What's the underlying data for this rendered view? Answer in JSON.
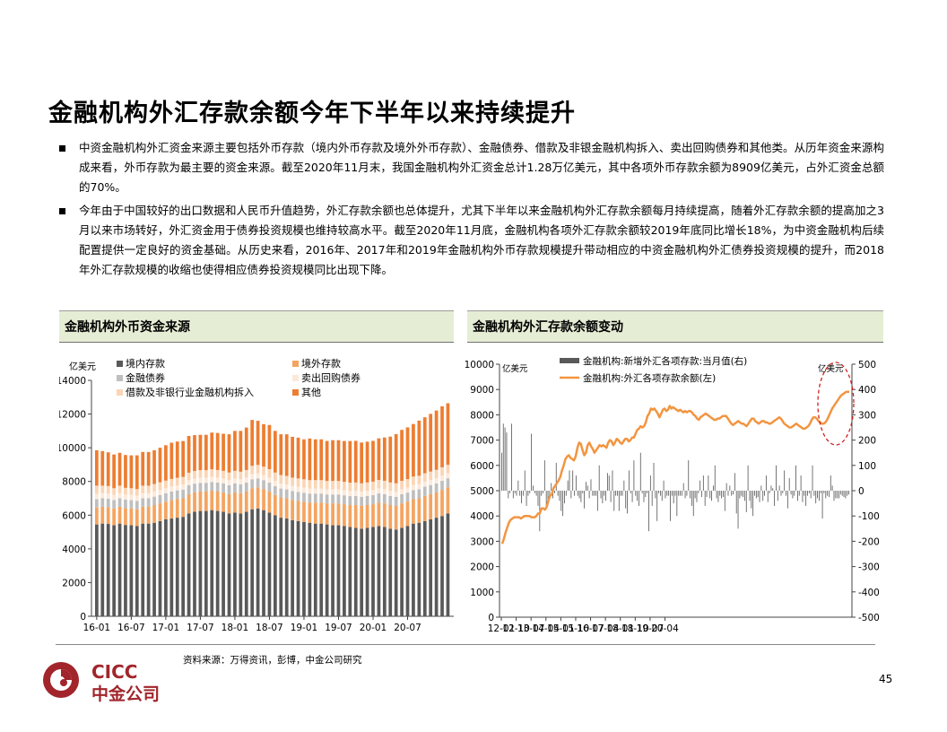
{
  "page": {
    "title": "金融机构外汇存款余额今年下半年以来持续提升",
    "bullets": [
      "中资金融机构外汇资金来源主要包括外币存款（境内外币存款及境外外币存款）、金融债券、借款及非银金融机构拆入、卖出回购债券和其他类。从历年资金来源构成来看，外币存款为最主要的资金来源。截至2020年11月末，我国金融机构外汇资金总计1.28万亿美元，其中各项外币存款余额为8909亿美元，占外汇资金总额的70%。",
      "今年由于中国较好的出口数据和人民币升值趋势，外汇存款余额也总体提升，尤其下半年以来金融机构外汇存款余额每月持续提高，随着外汇存款余额的提高加之3月以来市场转好，外汇资金用于债券投资规模也维持较高水平。截至2020年11月底，金融机构各项外汇存款余额较2019年底同比增长18%，为中资金融机构后续配置提供一定良好的资金基础。从历史来看，2016年、2017年和2019年金融机构外币存款规模提升带动相应的中资金融机构外汇债券投资规模的提升，而2018年外汇存款规模的收缩也使得相应债券投资规模同比出现下降。"
    ],
    "left_panel_title": "金融机构外币资金来源",
    "right_panel_title": "金融机构外汇存款余额变动",
    "source": "资料来源：万得资讯，彭博，中金公司研究",
    "page_number": "45",
    "logo": {
      "en": "CICC",
      "cn": "中金公司"
    },
    "colors": {
      "panel_bg": "#e6edd5",
      "logo_red": "#a1252b",
      "line_orange": "#f29540"
    }
  },
  "chart_data": [
    {
      "type": "bar",
      "stacked": true,
      "title": "金融机构外币资金来源",
      "ylabel": "亿美元",
      "ylim": [
        0,
        14000
      ],
      "yticks": [
        0,
        2000,
        4000,
        6000,
        8000,
        10000,
        12000,
        14000
      ],
      "xtick_labels": [
        "16-01",
        "16-07",
        "17-01",
        "17-07",
        "18-01",
        "18-07",
        "19-01",
        "19-07",
        "20-01",
        "20-07"
      ],
      "grid": false,
      "legend_position": "top",
      "series": [
        {
          "name": "境内存款",
          "color": "#595959",
          "values": [
            5450,
            5500,
            5480,
            5400,
            5500,
            5420,
            5400,
            5350,
            5500,
            5500,
            5550,
            5650,
            5750,
            5800,
            5850,
            5900,
            6100,
            6200,
            6250,
            6250,
            6300,
            6250,
            6200,
            6100,
            6150,
            6100,
            6200,
            6350,
            6400,
            6300,
            6150,
            6000,
            5850,
            5800,
            5700,
            5650,
            5600,
            5550,
            5500,
            5500,
            5450,
            5400,
            5400,
            5350,
            5300,
            5250,
            5200,
            5250,
            5300,
            5350,
            5300,
            5200,
            5150,
            5250,
            5350,
            5500,
            5550,
            5650,
            5750,
            5850,
            5950,
            6100
          ]
        },
        {
          "name": "境外存款",
          "color": "#f4a460",
          "values": [
            1000,
            1000,
            1000,
            1000,
            1000,
            1000,
            1000,
            1000,
            1000,
            1000,
            1050,
            1050,
            1050,
            1100,
            1100,
            1100,
            1150,
            1150,
            1150,
            1150,
            1150,
            1150,
            1150,
            1150,
            1200,
            1200,
            1200,
            1250,
            1250,
            1250,
            1250,
            1200,
            1200,
            1200,
            1200,
            1200,
            1200,
            1200,
            1250,
            1250,
            1250,
            1300,
            1300,
            1300,
            1300,
            1350,
            1350,
            1350,
            1350,
            1400,
            1400,
            1400,
            1400,
            1450,
            1450,
            1450,
            1450,
            1500,
            1500,
            1500,
            1550,
            1550
          ]
        },
        {
          "name": "金融债券",
          "color": "#bfbfbf",
          "values": [
            500,
            500,
            500,
            500,
            500,
            500,
            500,
            500,
            500,
            500,
            500,
            500,
            500,
            500,
            520,
            520,
            520,
            520,
            520,
            520,
            520,
            530,
            530,
            530,
            530,
            530,
            530,
            530,
            530,
            530,
            530,
            530,
            530,
            530,
            530,
            530,
            530,
            530,
            530,
            530,
            530,
            530,
            530,
            530,
            530,
            540,
            540,
            540,
            540,
            540,
            540,
            540,
            540,
            540,
            540,
            540,
            540,
            540,
            540,
            540,
            540,
            540
          ]
        },
        {
          "name": "卖出回购债券",
          "color": "#fde9d9",
          "values": [
            300,
            300,
            300,
            300,
            300,
            300,
            300,
            300,
            300,
            300,
            300,
            300,
            300,
            300,
            300,
            300,
            300,
            300,
            300,
            300,
            300,
            300,
            300,
            300,
            300,
            300,
            300,
            300,
            300,
            300,
            300,
            300,
            300,
            300,
            300,
            300,
            300,
            300,
            300,
            300,
            300,
            300,
            300,
            300,
            300,
            300,
            300,
            300,
            300,
            300,
            300,
            300,
            300,
            300,
            300,
            300,
            300,
            300,
            300,
            300,
            300,
            300
          ]
        },
        {
          "name": "借款及非银行业金融机构拆入",
          "color": "#fbd5b5",
          "values": [
            500,
            450,
            450,
            400,
            450,
            400,
            400,
            400,
            450,
            450,
            450,
            450,
            450,
            450,
            450,
            450,
            450,
            450,
            450,
            450,
            450,
            450,
            450,
            450,
            450,
            450,
            450,
            500,
            500,
            500,
            500,
            500,
            500,
            500,
            500,
            500,
            500,
            500,
            500,
            500,
            500,
            500,
            500,
            500,
            500,
            500,
            500,
            500,
            500,
            500,
            500,
            500,
            500,
            500,
            500,
            500,
            500,
            500,
            500,
            500,
            500,
            500
          ]
        },
        {
          "name": "其他",
          "color": "#ed7d31",
          "values": [
            2100,
            2050,
            2000,
            2000,
            1950,
            1950,
            1950,
            2000,
            2000,
            2000,
            2000,
            2050,
            2100,
            2150,
            2150,
            2130,
            2180,
            2130,
            2100,
            2100,
            2180,
            2200,
            2200,
            2270,
            2370,
            2420,
            2520,
            2720,
            2620,
            2520,
            2620,
            2470,
            2420,
            2470,
            2420,
            2420,
            2370,
            2470,
            2420,
            2420,
            2370,
            2420,
            2420,
            2420,
            2470,
            2470,
            2420,
            2420,
            2420,
            2470,
            2570,
            2720,
            2920,
            3020,
            3070,
            3120,
            3270,
            3320,
            3420,
            3520,
            3620,
            3650
          ]
        }
      ]
    },
    {
      "type": "bar+line",
      "title": "金融机构外汇存款余额变动",
      "ylabel_left": "亿美元",
      "ylabel_right": "亿美元",
      "ylim_left": [
        0,
        10000
      ],
      "ylim_right": [
        -500,
        500
      ],
      "yticks_left": [
        0,
        1000,
        2000,
        3000,
        4000,
        5000,
        6000,
        7000,
        8000,
        9000,
        10000
      ],
      "yticks_right": [
        -500,
        -400,
        -300,
        -200,
        -100,
        0,
        100,
        200,
        300,
        400,
        500
      ],
      "xtick_labels": [
        "12-01",
        "12-10",
        "13-07",
        "14-04",
        "15-01",
        "15-10",
        "16-07",
        "17-04",
        "18-01",
        "18-10",
        "19-07",
        "20-04"
      ],
      "legend_position": "top",
      "annotation": "亿美元",
      "series": [
        {
          "name": "金融机构:新增外汇各项存款:当月值(右)",
          "type": "bar",
          "axis": "right",
          "color": "#595959",
          "values": [
            150,
            265,
            250,
            230,
            -30,
            -10,
            265,
            -30,
            -10,
            -20,
            40,
            -20,
            -50,
            -20,
            80,
            -60,
            -20,
            -10,
            225,
            20,
            -10,
            -20,
            -60,
            -160,
            -20,
            -10,
            120,
            -60,
            -60,
            -20,
            30,
            -30,
            -10,
            110,
            -20,
            -40,
            -80,
            -100,
            -50,
            -20,
            40,
            80,
            -30,
            80,
            -20,
            60,
            -20,
            -30,
            -45,
            -10,
            -70,
            35,
            20,
            -30,
            45,
            -20,
            -20,
            -20,
            -80,
            100,
            -30,
            -50,
            -20,
            -40,
            70,
            60,
            -45,
            80,
            -80,
            -20,
            -20,
            -80,
            -20,
            -20,
            40,
            -70,
            -90,
            80,
            -10,
            -45,
            120,
            -20,
            -40,
            -60,
            150,
            -10,
            -45,
            -25,
            -10,
            -160,
            60,
            -60,
            110,
            -30,
            -120,
            -10,
            -20,
            -40,
            40,
            -30,
            -20,
            -20,
            -120,
            -20,
            -50,
            -20,
            -100,
            -20,
            -20,
            -20,
            30,
            -30,
            -20,
            120,
            -30,
            -60,
            -100,
            -30,
            -45,
            -10,
            40,
            -25,
            60,
            -60,
            -25,
            60,
            -30,
            -40,
            20,
            100,
            -30,
            -45,
            -20,
            -30,
            -25,
            -80,
            30,
            -20,
            20,
            -20,
            -15,
            70,
            -90,
            -150,
            -30,
            -20,
            -25,
            -40,
            -85,
            100,
            -40,
            -70,
            -100,
            -20,
            -30,
            -25,
            -45,
            20,
            -40,
            -20,
            60,
            -45,
            -10,
            20,
            10,
            -60,
            100,
            -40,
            20,
            -20,
            -10,
            80,
            -20,
            -70,
            50,
            -15,
            -30,
            -20,
            100,
            -40,
            -20,
            60,
            -45,
            -20,
            -60,
            -20,
            -10,
            -30,
            100,
            -20,
            -50,
            -30,
            -40,
            -10,
            -110,
            -10,
            -30,
            -20,
            -25,
            60,
            20,
            -40,
            -30,
            -30,
            -30,
            -15,
            -20,
            -25,
            -30,
            -20,
            -15
          ]
        },
        {
          "name": "金融机构:外汇各项存款余额(左)",
          "type": "line",
          "axis": "left",
          "color": "#f29540",
          "values": [
            2900,
            3100,
            3350,
            3550,
            3750,
            3850,
            3900,
            3950,
            3950,
            3950,
            3950,
            3900,
            3950,
            4000,
            4000,
            4000,
            4000,
            3950,
            3950,
            3950,
            4000,
            4100,
            4100,
            4300,
            4300,
            4250,
            4350,
            4600,
            4800,
            4850,
            5100,
            5200,
            5300,
            5400,
            5550,
            5800,
            6000,
            6250,
            6350,
            6400,
            6300,
            6250,
            6200,
            6350,
            6700,
            6900,
            6850,
            6600,
            6400,
            6500,
            6800,
            6900,
            6750,
            6650,
            6500,
            6600,
            6700,
            6800,
            6750,
            6800,
            6750,
            6700,
            6900,
            7000,
            6950,
            6800,
            6900,
            7050,
            7000,
            6900,
            6850,
            6950,
            7050,
            7050,
            6950,
            7000,
            7100,
            7100,
            7250,
            7400,
            7450,
            7550,
            7500,
            7550,
            7700,
            7950,
            8050,
            8250,
            8200,
            8250,
            8150,
            8050,
            7900,
            8050,
            8200,
            8250,
            8150,
            8200,
            8350,
            8250,
            8300,
            8250,
            8200,
            8150,
            8200,
            8150,
            8100,
            8150,
            8100,
            8150,
            8150,
            8100,
            8000,
            7950,
            7850,
            7800,
            7900,
            7950,
            8000,
            8050,
            8000,
            7950,
            7900,
            7850,
            7800,
            7800,
            7850,
            7850,
            7900,
            7950,
            7950,
            7950,
            7850,
            7750,
            7650,
            7600,
            7650,
            7700,
            7750,
            7700,
            7650,
            7650,
            7600,
            7550,
            7650,
            7750,
            7850,
            7850,
            7750,
            7700,
            7650,
            7700,
            7750,
            7750,
            7700,
            7700,
            7650,
            7650,
            7700,
            7750,
            7800,
            7850,
            7900,
            7850,
            7750,
            7650,
            7600,
            7550,
            7500,
            7500,
            7550,
            7600,
            7650,
            7600,
            7550,
            7500,
            7450,
            7450,
            7500,
            7550,
            7650,
            7800,
            7900,
            7900,
            7850,
            7750,
            7700,
            7650,
            7650,
            7700,
            7800,
            7950,
            8100,
            8250,
            8350,
            8450,
            8550,
            8650,
            8750,
            8800,
            8850,
            8900,
            8909,
            8909
          ]
        }
      ]
    }
  ]
}
